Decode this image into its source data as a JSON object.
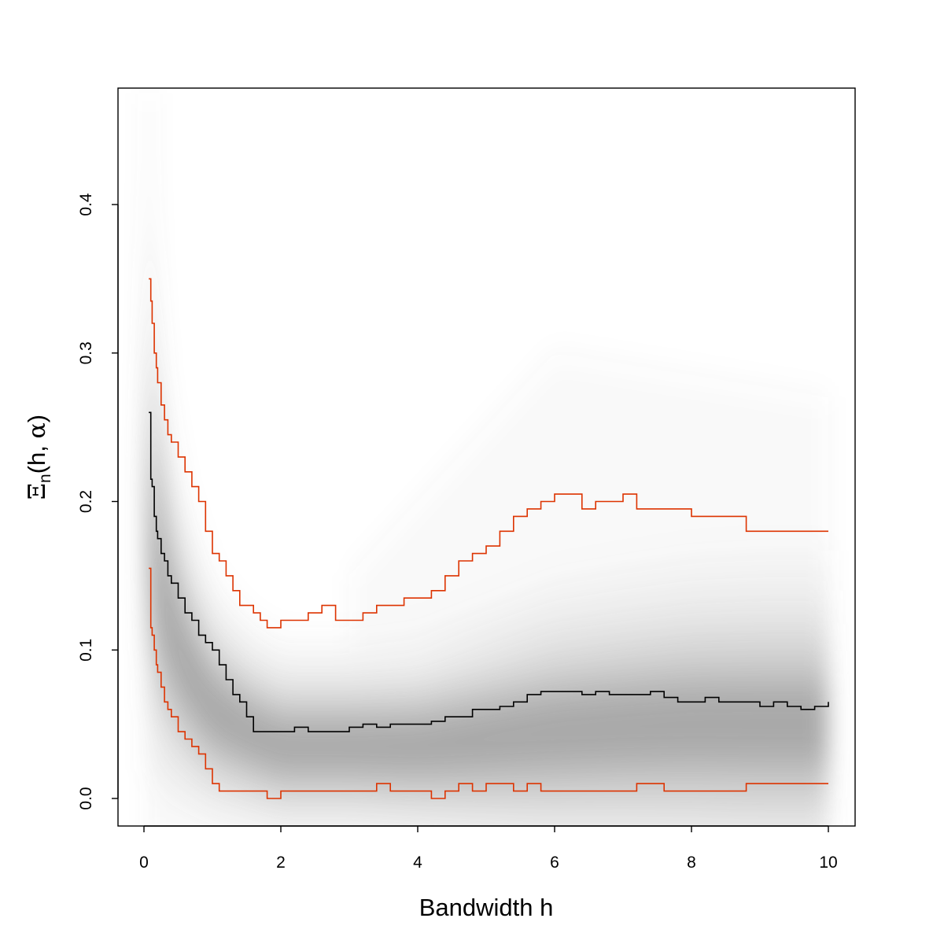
{
  "chart_data": {
    "type": "line",
    "title": "",
    "xlabel": "Bandwidth h",
    "ylabel": {
      "symbol": "Ξ",
      "subscript": "n",
      "open": "(",
      "arg1": "h",
      "comma": ", ",
      "arg2": "α",
      "close": ")"
    },
    "xlim": [
      0,
      10
    ],
    "ylim": [
      -0.02,
      0.48
    ],
    "xticks": [
      0,
      2,
      4,
      6,
      8,
      10
    ],
    "xtick_labels": [
      "0",
      "2",
      "4",
      "6",
      "8",
      "10"
    ],
    "yticks": [
      0.0,
      0.1,
      0.2,
      0.3,
      0.4
    ],
    "ytick_labels": [
      "0.0",
      "0.1",
      "0.2",
      "0.3",
      "0.4"
    ],
    "grid": false,
    "legend": "none",
    "colors": {
      "band": "#dd3300",
      "median": "#000000",
      "density": "#6e6e6e"
    },
    "density_band": {
      "description_free_values": true,
      "h": [
        0.05,
        0.3,
        0.6,
        1.0,
        1.5,
        2.0,
        3.0,
        4.0,
        5.0,
        6.0,
        7.0,
        8.0,
        9.0,
        10.0
      ],
      "center": [
        0.2,
        0.13,
        0.09,
        0.06,
        0.045,
        0.035,
        0.035,
        0.035,
        0.04,
        0.045,
        0.048,
        0.05,
        0.05,
        0.05
      ],
      "spread": [
        0.09,
        0.06,
        0.045,
        0.035,
        0.03,
        0.028,
        0.028,
        0.03,
        0.035,
        0.04,
        0.042,
        0.044,
        0.045,
        0.045
      ]
    },
    "series": [
      {
        "color": "#000000",
        "x": [
          0.07,
          0.1,
          0.12,
          0.15,
          0.18,
          0.2,
          0.25,
          0.3,
          0.35,
          0.4,
          0.5,
          0.6,
          0.7,
          0.8,
          0.9,
          1.0,
          1.1,
          1.2,
          1.3,
          1.4,
          1.5,
          1.6,
          1.7,
          1.8,
          2.0,
          2.2,
          2.4,
          2.6,
          2.8,
          3.0,
          3.2,
          3.4,
          3.6,
          3.8,
          4.0,
          4.2,
          4.4,
          4.6,
          4.8,
          5.0,
          5.2,
          5.4,
          5.6,
          5.8,
          6.0,
          6.2,
          6.4,
          6.6,
          6.8,
          7.0,
          7.2,
          7.4,
          7.6,
          7.8,
          8.0,
          8.2,
          8.4,
          8.6,
          8.8,
          9.0,
          9.2,
          9.4,
          9.6,
          9.8,
          10.0
        ],
        "y": [
          0.26,
          0.215,
          0.21,
          0.19,
          0.18,
          0.175,
          0.165,
          0.16,
          0.15,
          0.145,
          0.135,
          0.125,
          0.12,
          0.11,
          0.105,
          0.1,
          0.09,
          0.08,
          0.07,
          0.065,
          0.055,
          0.045,
          0.045,
          0.045,
          0.045,
          0.048,
          0.045,
          0.045,
          0.045,
          0.048,
          0.05,
          0.048,
          0.05,
          0.05,
          0.05,
          0.052,
          0.055,
          0.055,
          0.06,
          0.06,
          0.062,
          0.065,
          0.07,
          0.072,
          0.072,
          0.072,
          0.07,
          0.072,
          0.07,
          0.07,
          0.07,
          0.072,
          0.068,
          0.065,
          0.065,
          0.068,
          0.065,
          0.065,
          0.065,
          0.062,
          0.065,
          0.062,
          0.06,
          0.062,
          0.065
        ]
      },
      {
        "color": "#dd3300",
        "x": [
          0.07,
          0.1,
          0.12,
          0.15,
          0.18,
          0.2,
          0.25,
          0.3,
          0.35,
          0.4,
          0.5,
          0.6,
          0.7,
          0.8,
          0.9,
          1.0,
          1.1,
          1.2,
          1.3,
          1.4,
          1.5,
          1.6,
          1.7,
          1.8,
          2.0,
          2.2,
          2.4,
          2.6,
          2.8,
          3.0,
          3.2,
          3.4,
          3.6,
          3.8,
          4.0,
          4.2,
          4.4,
          4.6,
          4.8,
          5.0,
          5.2,
          5.4,
          5.6,
          5.8,
          6.0,
          6.2,
          6.4,
          6.6,
          6.8,
          7.0,
          7.2,
          7.4,
          7.6,
          7.8,
          8.0,
          8.2,
          8.4,
          8.6,
          8.8,
          9.0,
          9.2,
          9.4,
          9.6,
          9.8,
          10.0
        ],
        "y": [
          0.35,
          0.335,
          0.32,
          0.3,
          0.29,
          0.28,
          0.265,
          0.255,
          0.245,
          0.24,
          0.23,
          0.22,
          0.21,
          0.2,
          0.18,
          0.165,
          0.16,
          0.15,
          0.14,
          0.13,
          0.13,
          0.125,
          0.12,
          0.115,
          0.12,
          0.12,
          0.125,
          0.13,
          0.12,
          0.12,
          0.125,
          0.13,
          0.13,
          0.135,
          0.135,
          0.14,
          0.15,
          0.16,
          0.165,
          0.17,
          0.18,
          0.19,
          0.195,
          0.2,
          0.205,
          0.205,
          0.195,
          0.2,
          0.2,
          0.205,
          0.195,
          0.195,
          0.195,
          0.195,
          0.19,
          0.19,
          0.19,
          0.19,
          0.18,
          0.18,
          0.18,
          0.18,
          0.18,
          0.18,
          0.18
        ]
      },
      {
        "color": "#dd3300",
        "x": [
          0.07,
          0.1,
          0.12,
          0.15,
          0.18,
          0.2,
          0.25,
          0.3,
          0.35,
          0.4,
          0.5,
          0.6,
          0.7,
          0.8,
          0.9,
          1.0,
          1.1,
          1.2,
          1.3,
          1.4,
          1.5,
          1.6,
          1.7,
          1.8,
          2.0,
          2.2,
          2.4,
          2.6,
          2.8,
          3.0,
          3.2,
          3.4,
          3.6,
          3.8,
          4.0,
          4.2,
          4.4,
          4.6,
          4.8,
          5.0,
          5.2,
          5.4,
          5.6,
          5.8,
          6.0,
          6.2,
          6.4,
          6.6,
          6.8,
          7.0,
          7.2,
          7.4,
          7.6,
          7.8,
          8.0,
          8.2,
          8.4,
          8.6,
          8.8,
          9.0,
          9.2,
          9.4,
          9.6,
          9.8,
          10.0
        ],
        "y": [
          0.155,
          0.115,
          0.11,
          0.1,
          0.09,
          0.085,
          0.075,
          0.065,
          0.06,
          0.055,
          0.045,
          0.04,
          0.035,
          0.03,
          0.02,
          0.01,
          0.005,
          0.005,
          0.005,
          0.005,
          0.005,
          0.005,
          0.005,
          0.0,
          0.005,
          0.005,
          0.005,
          0.005,
          0.005,
          0.005,
          0.005,
          0.01,
          0.005,
          0.005,
          0.005,
          0.0,
          0.005,
          0.01,
          0.005,
          0.01,
          0.01,
          0.005,
          0.01,
          0.005,
          0.005,
          0.005,
          0.005,
          0.005,
          0.005,
          0.005,
          0.01,
          0.01,
          0.005,
          0.005,
          0.005,
          0.005,
          0.005,
          0.005,
          0.01,
          0.01,
          0.01,
          0.01,
          0.01,
          0.01,
          0.01
        ]
      }
    ]
  }
}
